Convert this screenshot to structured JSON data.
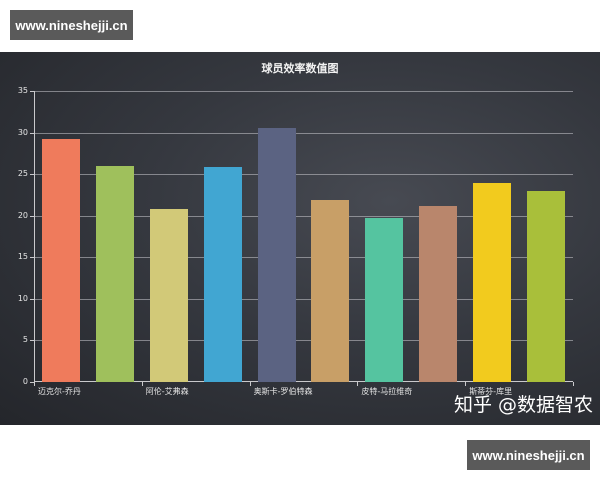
{
  "watermarks": {
    "top": "www.nineshejji.cn",
    "bottom": "www.nineshejji.cn"
  },
  "brand_overlay": "知乎 @数据智农",
  "chart_data": {
    "type": "bar",
    "title": "球员效率数值图",
    "xlabel": "",
    "ylabel": "",
    "ylim": [
      0,
      35
    ],
    "yticks": [
      0,
      5,
      10,
      15,
      20,
      25,
      30,
      35
    ],
    "grid": true,
    "legend": null,
    "categories": [
      "迈克尔-乔丹",
      "",
      "阿伦-艾弗森",
      "",
      "奥斯卡-罗伯特森",
      "",
      "皮特-马拉维奇",
      "",
      "斯蒂芬-库里",
      ""
    ],
    "visible_xtick_labels": [
      "迈克尔-乔丹",
      "阿伦-艾弗森",
      "奥斯卡-罗伯特森",
      "皮特-马拉维奇",
      "斯蒂芬-库里"
    ],
    "values": [
      29.2,
      26.0,
      20.8,
      25.9,
      30.6,
      21.9,
      19.7,
      21.2,
      23.9,
      23.0
    ],
    "colors": [
      "#ef7b5c",
      "#9fc05c",
      "#d2c978",
      "#41a6d2",
      "#5b6382",
      "#c89f67",
      "#55c4a0",
      "#b9866c",
      "#f2cb1e",
      "#a9bf3a"
    ]
  }
}
